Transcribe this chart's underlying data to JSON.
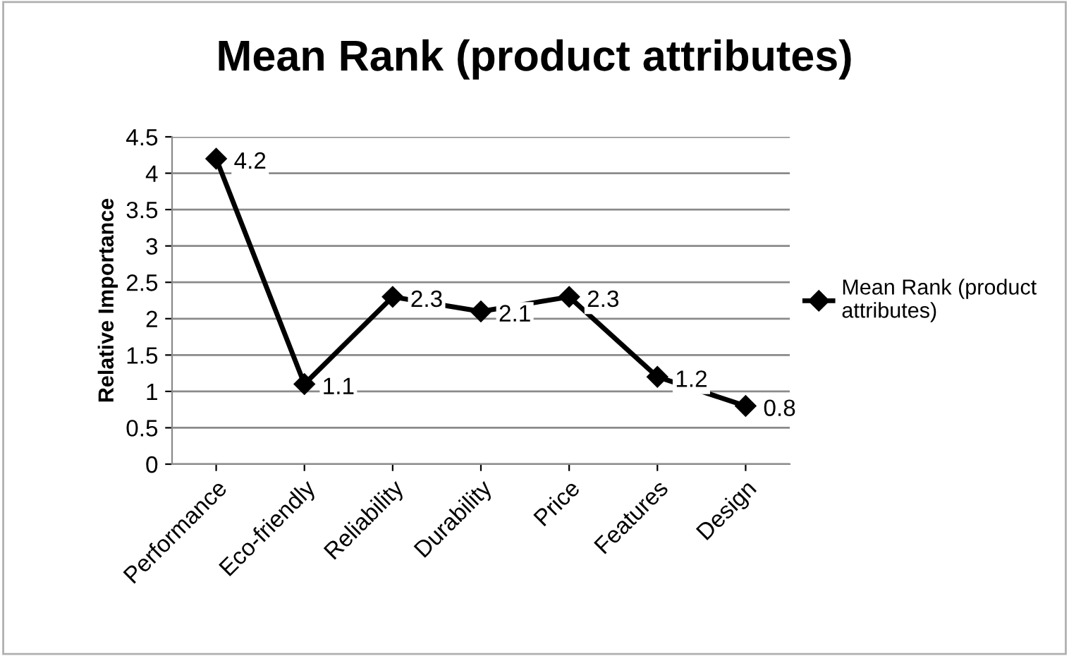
{
  "chart_data": {
    "type": "line",
    "title": "Mean Rank (product attributes)",
    "ylabel": "Relative Importance",
    "categories": [
      "Performance",
      "Eco-friendly",
      "Reliability",
      "Durability",
      "Price",
      "Features",
      "Design"
    ],
    "series": [
      {
        "name": "Mean Rank (product attributes)",
        "color": "#000000",
        "values": [
          4.2,
          1.1,
          2.3,
          2.1,
          2.3,
          1.2,
          0.8
        ]
      }
    ],
    "ylim": [
      0,
      4.5
    ],
    "yticks": [
      0,
      0.5,
      1,
      1.5,
      2,
      2.5,
      3,
      3.5,
      4,
      4.5
    ],
    "grid": "y",
    "legend": "right",
    "marker": "diamond",
    "line_style": "solid",
    "data_labels": true
  }
}
